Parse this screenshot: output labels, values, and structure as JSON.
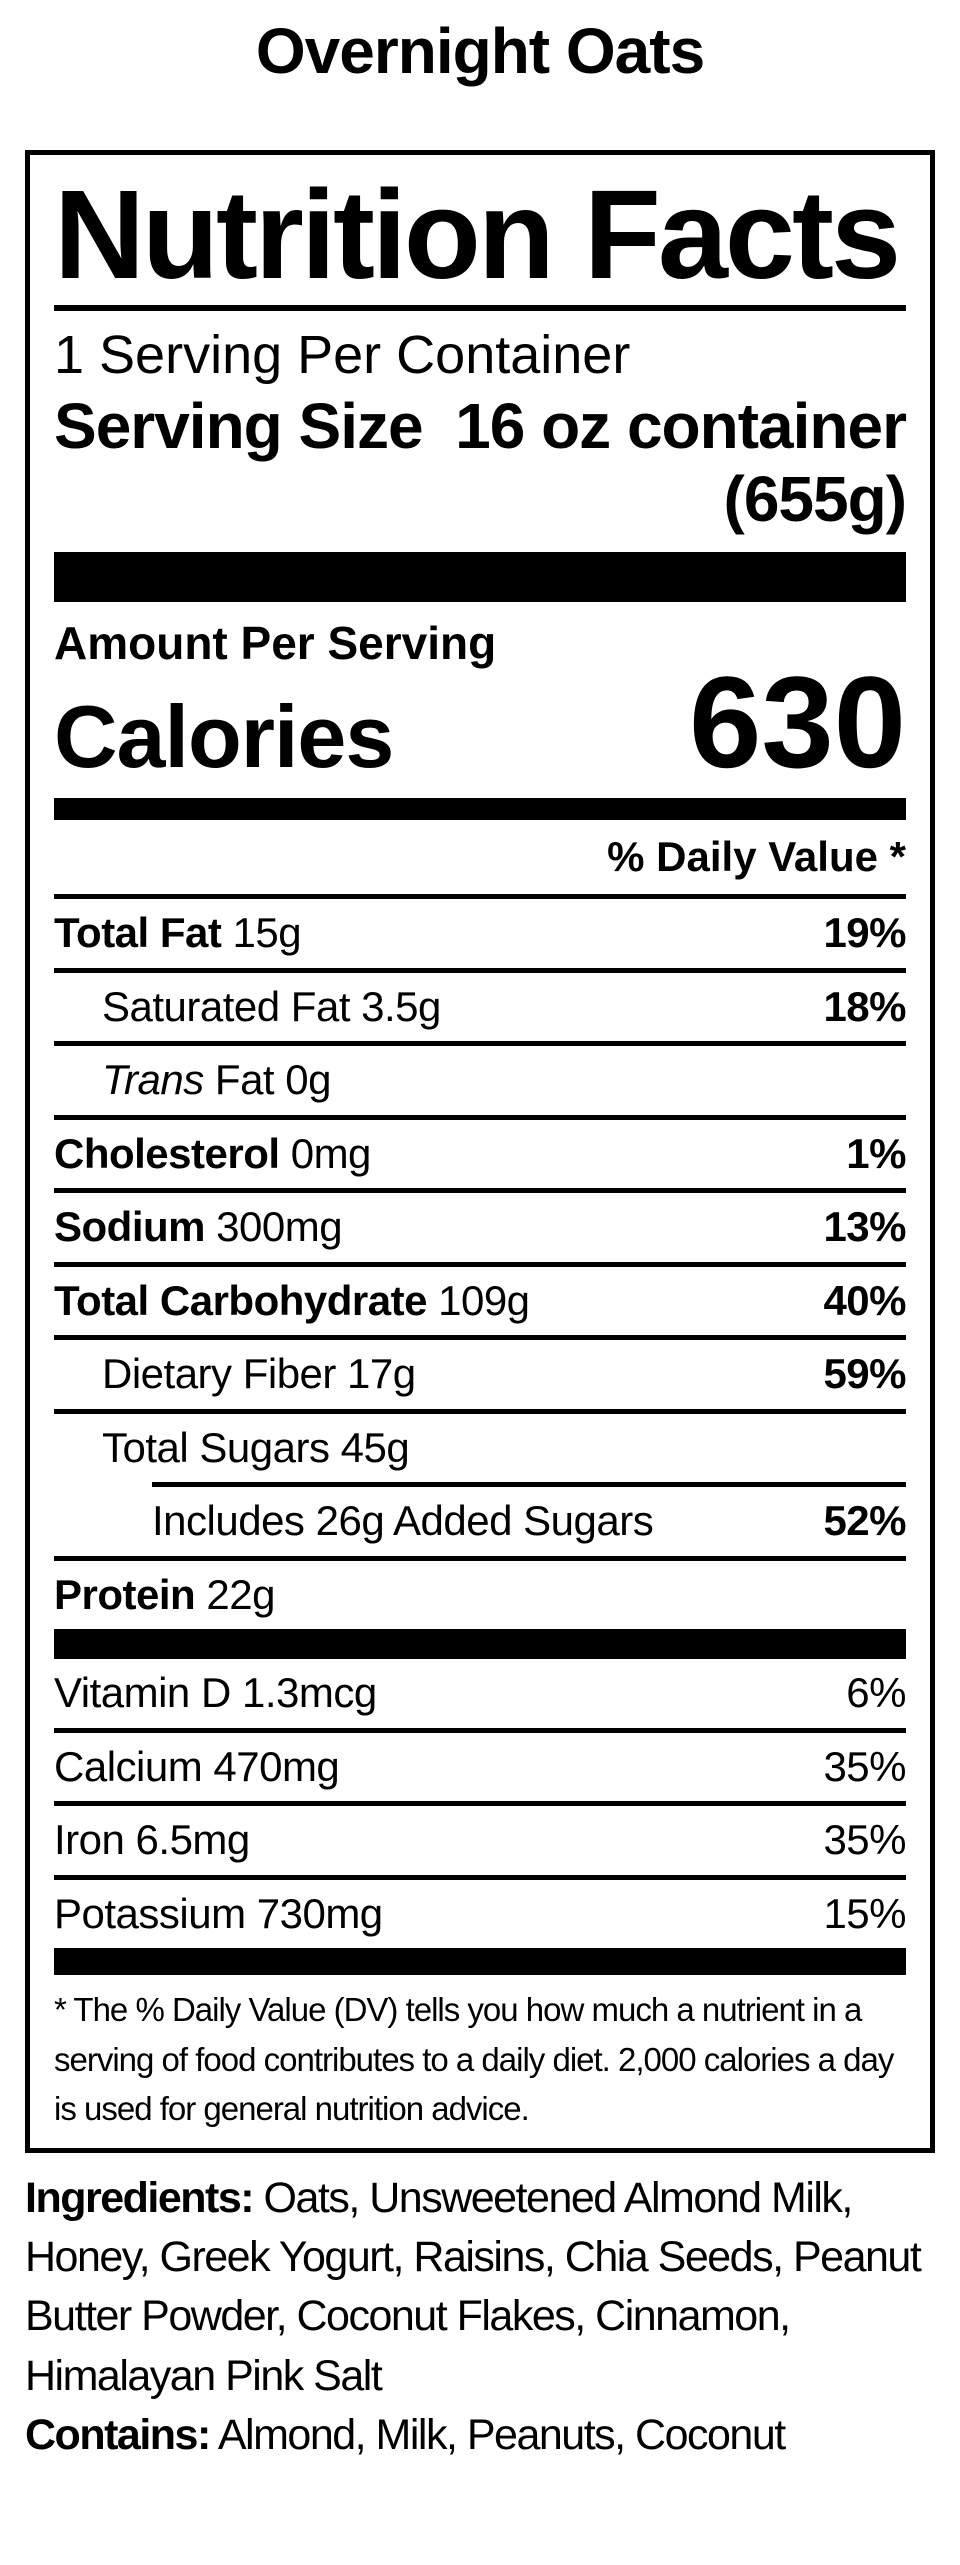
{
  "page": {
    "title": "Overnight Oats"
  },
  "label": {
    "heading": "Nutrition Facts",
    "servings_per_container": "1 Serving Per Container",
    "serving_size_label": "Serving Size",
    "serving_size_value": "16 oz container",
    "serving_size_weight": "(655g)",
    "amount_per_serving": "Amount Per Serving",
    "calories_label": "Calories",
    "calories_value": "630",
    "daily_value_header": "% Daily Value *",
    "nutrient_rows": [
      {
        "bold": "Total Fat",
        "rest": "15g",
        "pct": "19%",
        "pct_bold": true,
        "indent": 0
      },
      {
        "rest": "Saturated Fat 3.5g",
        "pct": "18%",
        "pct_bold": true,
        "indent": 1
      },
      {
        "italic": "Trans",
        "rest": "Fat 0g",
        "pct": "",
        "indent": 1
      },
      {
        "bold": "Cholesterol",
        "rest": "0mg",
        "pct": "1%",
        "pct_bold": true,
        "indent": 0
      },
      {
        "bold": "Sodium",
        "rest": "300mg",
        "pct": "13%",
        "pct_bold": true,
        "indent": 0
      },
      {
        "bold": "Total Carbohydrate",
        "rest": "109g",
        "pct": "40%",
        "pct_bold": true,
        "indent": 0
      },
      {
        "rest": "Dietary Fiber 17g",
        "pct": "59%",
        "pct_bold": true,
        "indent": 1
      },
      {
        "rest": "Total Sugars 45g",
        "pct": "",
        "indent": 1
      },
      {
        "rest": "Includes 26g Added Sugars",
        "pct": "52%",
        "pct_bold": true,
        "indent": 2,
        "rule_indent": true
      },
      {
        "bold": "Protein",
        "rest": "22g",
        "pct": "",
        "indent": 0
      }
    ],
    "vitamin_rows": [
      {
        "rest": "Vitamin D 1.3mcg",
        "pct": "6%"
      },
      {
        "rest": "Calcium 470mg",
        "pct": "35%"
      },
      {
        "rest": "Iron 6.5mg",
        "pct": "35%"
      },
      {
        "rest": "Potassium 730mg",
        "pct": "15%"
      }
    ],
    "footnote": "* The % Daily Value (DV) tells you how much a nutrient in a serving of food contributes to a daily diet. 2,000 calories a day is used for general nutrition advice."
  },
  "ingredients": {
    "label": "Ingredients:",
    "text": "Oats, Unsweetened Almond Milk, Honey, Greek Yogurt, Raisins, Chia Seeds, Peanut Butter Powder, Coconut Flakes, Cinnamon, Himalayan Pink Salt",
    "contains_label": "Contains:",
    "contains_text": "Almond, Milk, Peanuts, Coconut"
  },
  "colors": {
    "text": "#000000",
    "background": "#ffffff"
  }
}
